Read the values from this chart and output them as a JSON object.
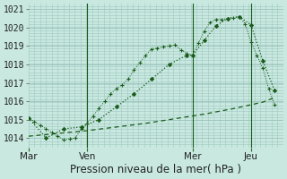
{
  "background_color": "#c8e8e0",
  "grid_color": "#a0c8c0",
  "line_color": "#1a5c1a",
  "ylim": [
    1013.5,
    1021.3
  ],
  "yticks": [
    1014,
    1015,
    1016,
    1017,
    1018,
    1019,
    1020,
    1021
  ],
  "xlabel": "Pression niveau de la mer( hPa )",
  "xlabel_fontsize": 8.5,
  "day_labels": [
    "Mar",
    "Ven",
    "Mer",
    "Jeu"
  ],
  "day_positions": [
    0,
    20,
    56,
    76
  ],
  "line1_x": [
    0,
    2,
    4,
    6,
    8,
    10,
    12,
    14,
    16,
    18,
    20,
    22,
    24,
    26,
    28,
    30,
    32,
    34,
    36,
    38,
    40,
    42,
    44,
    46,
    48,
    50,
    52,
    54,
    56,
    58,
    60,
    62,
    64,
    66,
    68,
    70,
    72,
    74,
    76,
    78,
    80,
    82,
    84
  ],
  "line1_y": [
    1015.1,
    1014.9,
    1014.7,
    1014.5,
    1014.3,
    1014.1,
    1013.9,
    1013.95,
    1014.0,
    1014.5,
    1014.8,
    1015.2,
    1015.6,
    1016.0,
    1016.4,
    1016.7,
    1016.9,
    1017.2,
    1017.7,
    1018.1,
    1018.5,
    1018.85,
    1018.9,
    1018.95,
    1019.0,
    1019.05,
    1018.8,
    1018.6,
    1018.5,
    1019.15,
    1019.8,
    1020.3,
    1020.45,
    1020.45,
    1020.5,
    1020.55,
    1020.6,
    1020.2,
    1019.2,
    1018.5,
    1017.8,
    1016.7,
    1015.8
  ],
  "line2_x": [
    0,
    6,
    12,
    18,
    24,
    30,
    36,
    42,
    48,
    54,
    56,
    60,
    64,
    68,
    72,
    76,
    80,
    84
  ],
  "line2_y": [
    1015.1,
    1014.0,
    1014.5,
    1014.6,
    1015.0,
    1015.7,
    1016.4,
    1017.2,
    1018.0,
    1018.5,
    1018.5,
    1019.3,
    1020.1,
    1020.5,
    1020.6,
    1020.15,
    1018.2,
    1016.6
  ],
  "line3_x": [
    0,
    10,
    20,
    30,
    40,
    50,
    60,
    70,
    80,
    84
  ],
  "line3_y": [
    1014.1,
    1014.25,
    1014.4,
    1014.6,
    1014.8,
    1015.05,
    1015.3,
    1015.6,
    1015.95,
    1016.2
  ],
  "tick_fontsize": 7,
  "vline_positions": [
    20,
    56,
    76
  ],
  "n_xgrid": 22,
  "n_ygrid": 8
}
